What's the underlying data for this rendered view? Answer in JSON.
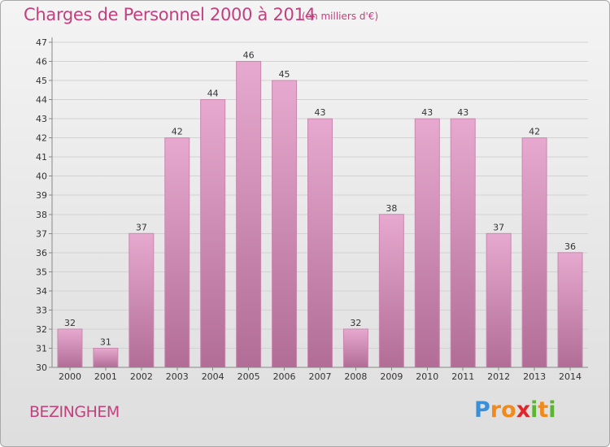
{
  "header": {
    "title": "Charges de Personnel 2000 à 2014",
    "unit": "(en milliers d'€)"
  },
  "footer": {
    "commune": "BEZINGHEM"
  },
  "logo": {
    "text": "Proxiti",
    "letters": [
      {
        "ch": "P",
        "color": "#3a8fd6"
      },
      {
        "ch": "r",
        "color": "#f08a1c"
      },
      {
        "ch": "o",
        "color": "#f08a1c"
      },
      {
        "ch": "x",
        "color": "#e0262c"
      },
      {
        "ch": "i",
        "color": "#5bb531"
      },
      {
        "ch": "t",
        "color": "#f08a1c"
      },
      {
        "ch": "i",
        "color": "#5bb531"
      }
    ]
  },
  "colors": {
    "bar_top": "#e7a9cf",
    "bar_bottom": "#b16d96",
    "bar_edge": "#c789ae",
    "title": "#c2407e"
  },
  "chart_data": {
    "type": "bar",
    "title": "Charges de Personnel 2000 à 2014",
    "subtitle": "(en milliers d'€)",
    "categories": [
      "2000",
      "2001",
      "2002",
      "2003",
      "2004",
      "2005",
      "2006",
      "2007",
      "2008",
      "2009",
      "2010",
      "2011",
      "2012",
      "2013",
      "2014"
    ],
    "values": [
      32,
      31,
      37,
      42,
      44,
      46,
      45,
      43,
      32,
      38,
      43,
      43,
      37,
      42,
      36
    ],
    "ylim": [
      30,
      47
    ],
    "yticks": [
      30,
      31,
      32,
      33,
      34,
      35,
      36,
      37,
      38,
      39,
      40,
      41,
      42,
      43,
      44,
      45,
      46,
      47
    ],
    "grid": true,
    "legend": "none"
  }
}
